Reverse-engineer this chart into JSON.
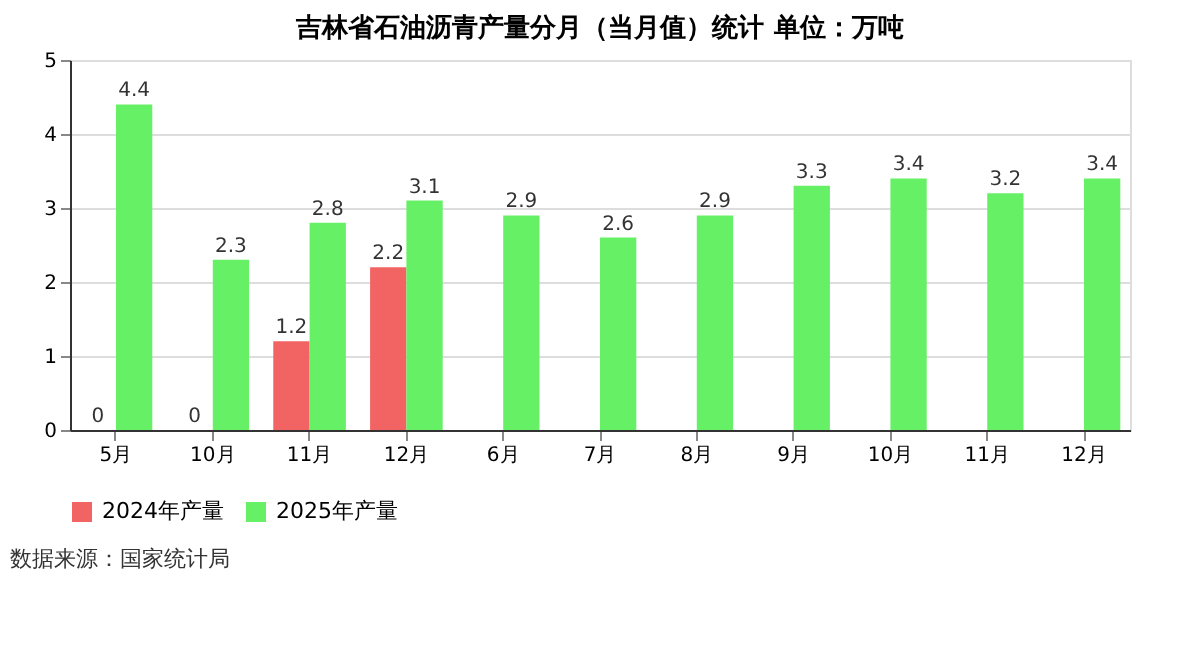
{
  "chart_data": {
    "type": "bar",
    "title": "吉林省石油沥青产量分月（当月值）统计 单位：万吨",
    "categories": [
      "5月",
      "10月",
      "11月",
      "12月",
      "6月",
      "7月",
      "8月",
      "9月",
      "10月",
      "11月",
      "12月"
    ],
    "series": [
      {
        "name": "2024年产量",
        "color": "#f26363",
        "values": [
          0,
          0,
          1.2,
          2.2,
          null,
          null,
          null,
          null,
          null,
          null,
          null
        ],
        "value_labels": [
          "0",
          "0",
          "1.2",
          "2.2",
          null,
          null,
          null,
          null,
          null,
          null,
          null
        ]
      },
      {
        "name": "2025年产量",
        "color": "#66f066",
        "values": [
          4.4,
          2.3,
          2.8,
          3.1,
          2.9,
          2.6,
          2.9,
          3.3,
          3.4,
          3.2,
          3.4
        ],
        "value_labels": [
          "4.4",
          "2.3",
          "2.8",
          "3.1",
          "2.9",
          "2.6",
          "2.9",
          "3.3",
          "3.4",
          "3.2",
          "3.4"
        ]
      }
    ],
    "ylim": [
      0,
      5
    ],
    "yticks": [
      0,
      1,
      2,
      3,
      4,
      5
    ],
    "grid": "y",
    "legend": "bottom",
    "annotations": [
      "数据来源：国家统计局"
    ]
  }
}
